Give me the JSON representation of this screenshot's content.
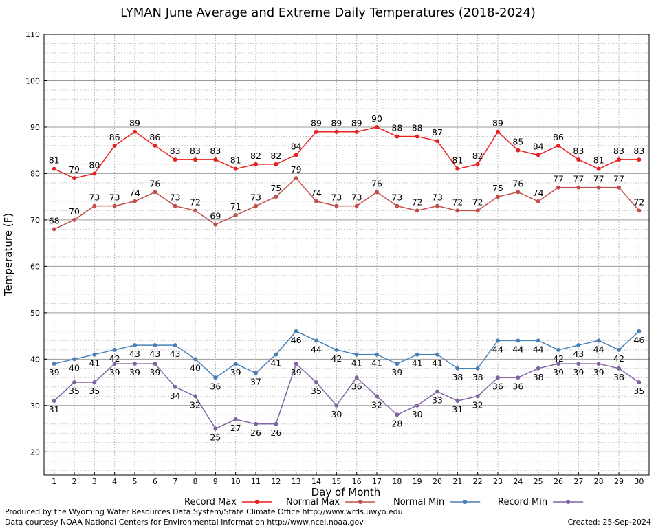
{
  "chart_data": {
    "type": "line",
    "title": "LYMAN June Average and Extreme Daily Temperatures (2018-2024)",
    "xlabel": "Day of Month",
    "ylabel": "Temperature (F)",
    "x": [
      1,
      2,
      3,
      4,
      5,
      6,
      7,
      8,
      9,
      10,
      11,
      12,
      13,
      14,
      15,
      16,
      17,
      18,
      19,
      20,
      21,
      22,
      23,
      24,
      25,
      26,
      27,
      28,
      29,
      30
    ],
    "xlim": [
      0.5,
      30.5
    ],
    "ylim": [
      15,
      110
    ],
    "yticks": [
      20,
      30,
      40,
      50,
      60,
      70,
      80,
      90,
      100,
      110
    ],
    "grid": true,
    "legend_position": "bottom",
    "series": [
      {
        "name": "Record Max",
        "color": "#e8201f",
        "values": [
          81,
          79,
          80,
          86,
          89,
          86,
          83,
          83,
          83,
          81,
          82,
          82,
          84,
          89,
          89,
          89,
          90,
          88,
          88,
          87,
          81,
          82,
          89,
          85,
          84,
          86,
          83,
          81,
          83,
          83
        ]
      },
      {
        "name": "Normal Max",
        "color": "#c0504d",
        "values": [
          68,
          70,
          73,
          73,
          74,
          76,
          73,
          72,
          69,
          71,
          73,
          75,
          79,
          74,
          73,
          73,
          76,
          73,
          72,
          73,
          72,
          72,
          75,
          76,
          74,
          77,
          77,
          77,
          77,
          72
        ]
      },
      {
        "name": "Normal Min",
        "color": "#4a7fb5",
        "values": [
          39,
          40,
          41,
          42,
          43,
          43,
          43,
          40,
          36,
          39,
          37,
          41,
          46,
          44,
          42,
          41,
          41,
          39,
          41,
          41,
          38,
          38,
          44,
          44,
          44,
          42,
          43,
          44,
          42,
          46
        ]
      },
      {
        "name": "Record Min",
        "color": "#8064a2",
        "values": [
          31,
          35,
          35,
          39,
          39,
          39,
          34,
          32,
          25,
          27,
          26,
          26,
          39,
          35,
          30,
          36,
          32,
          28,
          30,
          33,
          31,
          32,
          36,
          36,
          38,
          39,
          39,
          39,
          38,
          35
        ]
      }
    ]
  },
  "footer": {
    "produced_by": "Produced by the Wyoming Water Resources Data System/State Climate Office http://www.wrds.uwyo.edu",
    "data_courtesy": "Data courtesy NOAA National Centers for Environmental Information http://www.ncei.noaa.gov",
    "created": "Created:  25-Sep-2024"
  }
}
